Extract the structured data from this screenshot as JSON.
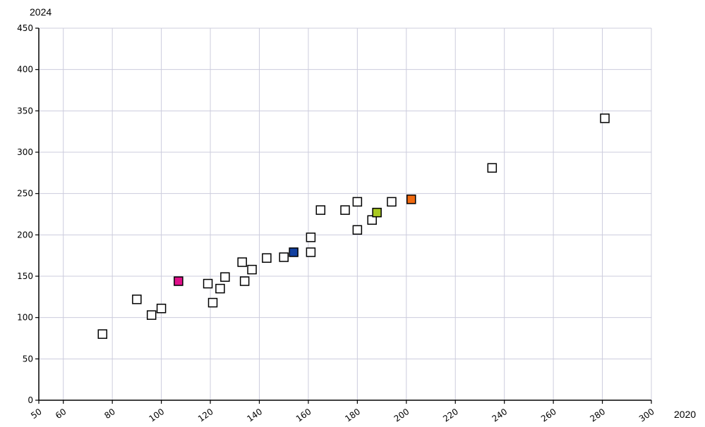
{
  "chart_data": {
    "type": "scatter",
    "xlabel": "2020",
    "ylabel": "2024",
    "xlim": [
      50,
      300
    ],
    "ylim": [
      0,
      450
    ],
    "x_ticks": [
      50,
      60,
      80,
      100,
      120,
      140,
      160,
      180,
      200,
      220,
      240,
      260,
      280,
      300
    ],
    "y_ticks": [
      0,
      50,
      100,
      150,
      200,
      250,
      300,
      350,
      400,
      450
    ],
    "grid": true,
    "colors": {
      "default_marker_fill": "#ffffff",
      "marker_stroke": "#000000",
      "grid": "#ccccdd",
      "axis": "#000000"
    },
    "points": [
      {
        "x": 76,
        "y": 80
      },
      {
        "x": 90,
        "y": 122
      },
      {
        "x": 96,
        "y": 103
      },
      {
        "x": 100,
        "y": 111
      },
      {
        "x": 107,
        "y": 144,
        "color": "#e0108a"
      },
      {
        "x": 119,
        "y": 141
      },
      {
        "x": 121,
        "y": 118
      },
      {
        "x": 124,
        "y": 135
      },
      {
        "x": 126,
        "y": 149
      },
      {
        "x": 133,
        "y": 167
      },
      {
        "x": 134,
        "y": 144
      },
      {
        "x": 137,
        "y": 158
      },
      {
        "x": 143,
        "y": 172
      },
      {
        "x": 150,
        "y": 173
      },
      {
        "x": 154,
        "y": 179,
        "color": "#1240a0"
      },
      {
        "x": 161,
        "y": 197
      },
      {
        "x": 161,
        "y": 179
      },
      {
        "x": 165,
        "y": 230
      },
      {
        "x": 175,
        "y": 230
      },
      {
        "x": 180,
        "y": 240
      },
      {
        "x": 180,
        "y": 206
      },
      {
        "x": 186,
        "y": 218
      },
      {
        "x": 188,
        "y": 227,
        "color": "#a8c820"
      },
      {
        "x": 194,
        "y": 240
      },
      {
        "x": 202,
        "y": 243,
        "color": "#f06a10"
      },
      {
        "x": 235,
        "y": 281
      },
      {
        "x": 281,
        "y": 341
      }
    ]
  }
}
